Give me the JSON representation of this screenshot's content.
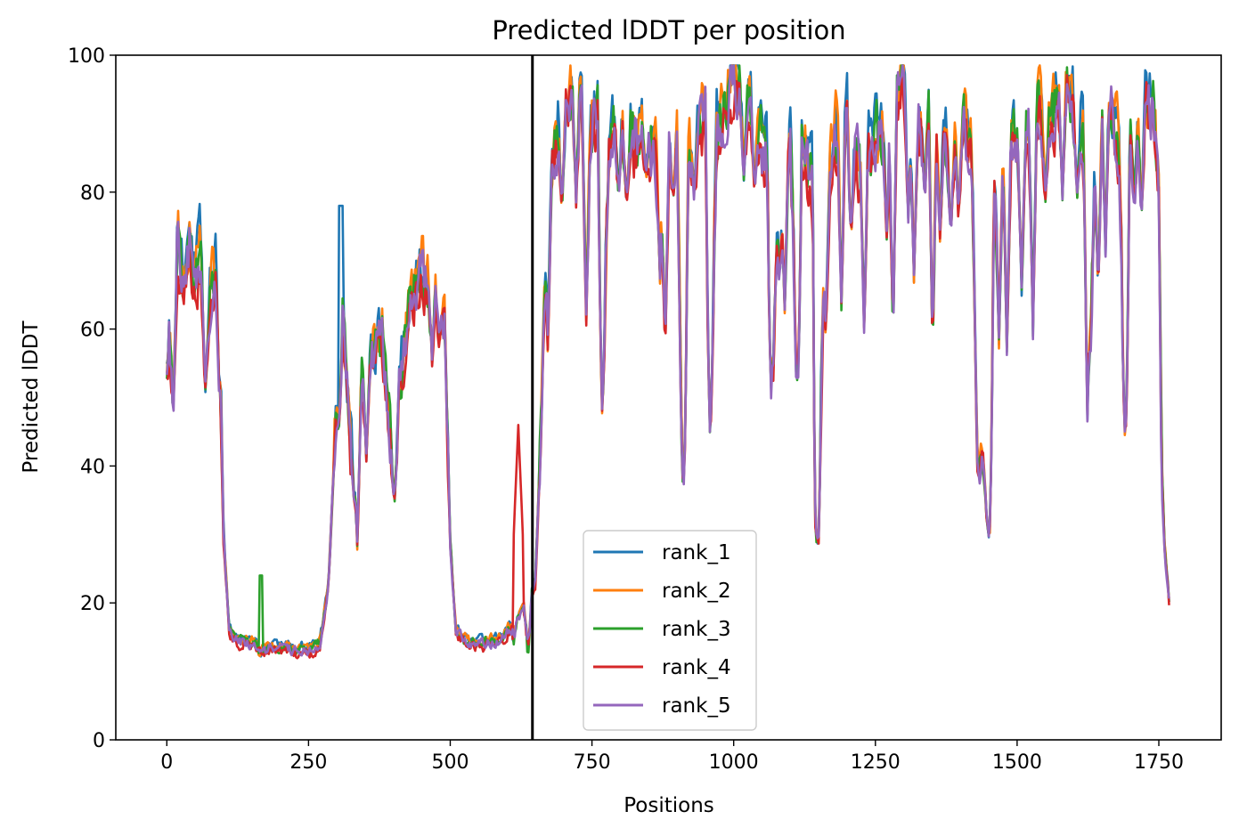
{
  "chart_data": {
    "type": "line",
    "title": "Predicted lDDT per position",
    "xlabel": "Positions",
    "ylabel": "Predicted lDDT",
    "xlim": [
      -90,
      1860
    ],
    "ylim": [
      0,
      100
    ],
    "xticks": [
      0,
      250,
      500,
      750,
      1000,
      1250,
      1500,
      1750
    ],
    "yticks": [
      0,
      20,
      40,
      60,
      80,
      100
    ],
    "vline": 645,
    "legend_position": "lower center",
    "grid": false,
    "base_profile": [
      [
        0,
        55
      ],
      [
        10,
        64
      ],
      [
        20,
        72
      ],
      [
        30,
        66
      ],
      [
        40,
        72
      ],
      [
        50,
        66
      ],
      [
        60,
        72
      ],
      [
        70,
        60
      ],
      [
        80,
        66
      ],
      [
        90,
        70
      ],
      [
        100,
        30
      ],
      [
        110,
        16
      ],
      [
        125,
        14.5
      ],
      [
        150,
        14
      ],
      [
        175,
        13
      ],
      [
        200,
        13.5
      ],
      [
        225,
        13
      ],
      [
        250,
        13
      ],
      [
        270,
        14
      ],
      [
        285,
        22
      ],
      [
        300,
        50
      ],
      [
        310,
        62
      ],
      [
        320,
        48
      ],
      [
        330,
        36
      ],
      [
        340,
        52
      ],
      [
        360,
        55
      ],
      [
        380,
        58
      ],
      [
        400,
        38
      ],
      [
        410,
        52
      ],
      [
        430,
        64
      ],
      [
        450,
        68
      ],
      [
        470,
        66
      ],
      [
        490,
        60
      ],
      [
        500,
        28
      ],
      [
        510,
        16
      ],
      [
        530,
        14
      ],
      [
        560,
        14
      ],
      [
        590,
        14.5
      ],
      [
        620,
        18
      ],
      [
        640,
        20
      ],
      [
        650,
        23
      ],
      [
        660,
        45
      ],
      [
        670,
        80
      ],
      [
        700,
        92
      ],
      [
        720,
        96
      ],
      [
        740,
        88
      ],
      [
        760,
        92
      ],
      [
        770,
        60
      ],
      [
        780,
        86
      ],
      [
        800,
        92
      ],
      [
        820,
        88
      ],
      [
        850,
        86
      ],
      [
        870,
        84
      ],
      [
        900,
        88
      ],
      [
        910,
        40
      ],
      [
        920,
        84
      ],
      [
        950,
        92
      ],
      [
        960,
        52
      ],
      [
        970,
        88
      ],
      [
        1000,
        96
      ],
      [
        1020,
        94
      ],
      [
        1040,
        90
      ],
      [
        1060,
        84
      ],
      [
        1070,
        55
      ],
      [
        1080,
        84
      ],
      [
        1100,
        88
      ],
      [
        1110,
        58
      ],
      [
        1120,
        88
      ],
      [
        1140,
        80
      ],
      [
        1145,
        32
      ],
      [
        1150,
        30
      ],
      [
        1160,
        76
      ],
      [
        1180,
        88
      ],
      [
        1200,
        92
      ],
      [
        1220,
        84
      ],
      [
        1250,
        88
      ],
      [
        1270,
        90
      ],
      [
        1300,
        96
      ],
      [
        1320,
        88
      ],
      [
        1340,
        92
      ],
      [
        1360,
        90
      ],
      [
        1380,
        86
      ],
      [
        1400,
        92
      ],
      [
        1420,
        84
      ],
      [
        1430,
        42
      ],
      [
        1440,
        40
      ],
      [
        1450,
        30
      ],
      [
        1460,
        80
      ],
      [
        1480,
        88
      ],
      [
        1500,
        86
      ],
      [
        1520,
        90
      ],
      [
        1540,
        92
      ],
      [
        1560,
        90
      ],
      [
        1580,
        96
      ],
      [
        1600,
        92
      ],
      [
        1620,
        88
      ],
      [
        1630,
        60
      ],
      [
        1640,
        88
      ],
      [
        1660,
        96
      ],
      [
        1680,
        86
      ],
      [
        1690,
        50
      ],
      [
        1700,
        88
      ],
      [
        1720,
        94
      ],
      [
        1740,
        92
      ],
      [
        1750,
        80
      ],
      [
        1755,
        40
      ],
      [
        1760,
        28
      ],
      [
        1768,
        20
      ]
    ],
    "dips": [
      [
        11,
        47
      ],
      [
        68,
        51
      ],
      [
        93,
        50
      ],
      [
        165,
        13
      ],
      [
        303,
        45
      ],
      [
        336,
        29
      ],
      [
        352,
        42
      ],
      [
        402,
        36
      ],
      [
        468,
        56
      ],
      [
        481,
        58
      ],
      [
        612,
        15
      ],
      [
        637,
        13
      ],
      [
        672,
        58
      ],
      [
        697,
        78
      ],
      [
        722,
        79
      ],
      [
        740,
        62
      ],
      [
        768,
        49
      ],
      [
        797,
        79
      ],
      [
        811,
        78
      ],
      [
        845,
        83
      ],
      [
        870,
        68
      ],
      [
        879,
        57
      ],
      [
        893,
        79
      ],
      [
        912,
        38
      ],
      [
        930,
        80
      ],
      [
        958,
        46
      ],
      [
        1018,
        83
      ],
      [
        1037,
        80
      ],
      [
        1066,
        51
      ],
      [
        1081,
        66
      ],
      [
        1090,
        62
      ],
      [
        1113,
        52
      ],
      [
        1146,
        29
      ],
      [
        1162,
        60
      ],
      [
        1190,
        64
      ],
      [
        1207,
        73
      ],
      [
        1230,
        60
      ],
      [
        1270,
        74
      ],
      [
        1281,
        59
      ],
      [
        1308,
        77
      ],
      [
        1318,
        68
      ],
      [
        1337,
        79
      ],
      [
        1351,
        57
      ],
      [
        1364,
        74
      ],
      [
        1383,
        74
      ],
      [
        1397,
        76
      ],
      [
        1433,
        40
      ],
      [
        1451,
        30
      ],
      [
        1468,
        58
      ],
      [
        1482,
        57
      ],
      [
        1508,
        66
      ],
      [
        1528,
        60
      ],
      [
        1550,
        79
      ],
      [
        1580,
        80
      ],
      [
        1606,
        80
      ],
      [
        1624,
        48
      ],
      [
        1643,
        65
      ],
      [
        1656,
        71
      ],
      [
        1691,
        45
      ],
      [
        1707,
        78
      ],
      [
        1719,
        76
      ]
    ],
    "series": [
      {
        "name": "rank_1",
        "color": "#1f77b4",
        "offset": 2.0,
        "seed": 11
      },
      {
        "name": "rank_2",
        "color": "#ff7f0e",
        "offset": 1.5,
        "seed": 23
      },
      {
        "name": "rank_3",
        "color": "#2ca02c",
        "offset": 0.5,
        "seed": 37
      },
      {
        "name": "rank_4",
        "color": "#d62728",
        "offset": -1.5,
        "seed": 41
      },
      {
        "name": "rank_5",
        "color": "#9467bd",
        "offset": 0.0,
        "seed": 53
      }
    ]
  }
}
